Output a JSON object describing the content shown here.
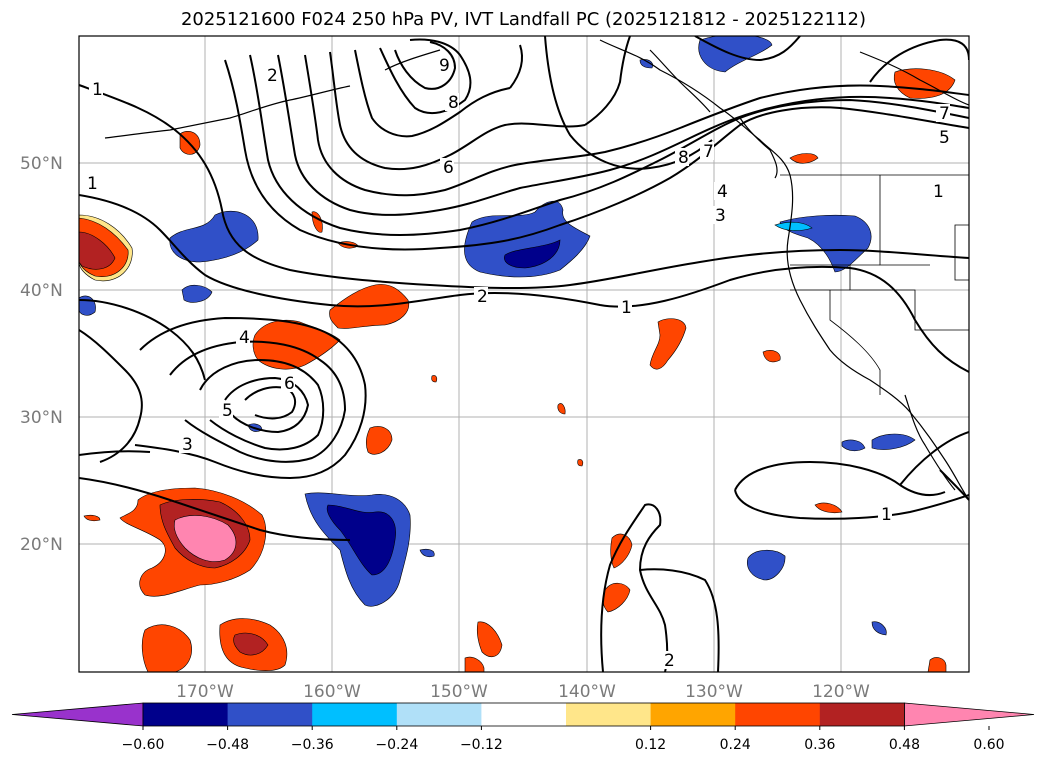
{
  "title": "2025121600 F024 250 hPa PV, IVT Landfall PC (2025121812 - 2025122112)",
  "lat_labels": [
    "50°N",
    "40°N",
    "30°N",
    "20°N"
  ],
  "lon_labels": [
    "170°W",
    "160°W",
    "150°W",
    "140°W",
    "130°W",
    "120°W"
  ],
  "colorbar": {
    "ticks": [
      "−0.60",
      "−0.48",
      "−0.36",
      "−0.24",
      "−0.12",
      "0.12",
      "0.24",
      "0.36",
      "0.48",
      "0.60"
    ],
    "colors": [
      "#9932cc",
      "#00008b",
      "#3050c8",
      "#00bfff",
      "#b0e0f8",
      "#ffffff",
      "#ffe68a",
      "#ffa500",
      "#ff4500",
      "#b22222",
      "#ff85b0"
    ]
  },
  "contour_labels": {
    "left_top_1": "1",
    "left_mid_1": "1",
    "trough_2": "2",
    "north_9": "9",
    "north_8": "8",
    "center_6": "6",
    "east_8": "8",
    "east_7": "7",
    "east_4": "4",
    "east_3": "3",
    "ne_7": "7",
    "ne_5": "5",
    "ne_1": "1",
    "mid_2": "2",
    "mid_1": "1",
    "low_4": "4",
    "low_6": "6",
    "low_5": "5",
    "low_3": "3",
    "se_1": "1",
    "south_2": "2"
  }
}
